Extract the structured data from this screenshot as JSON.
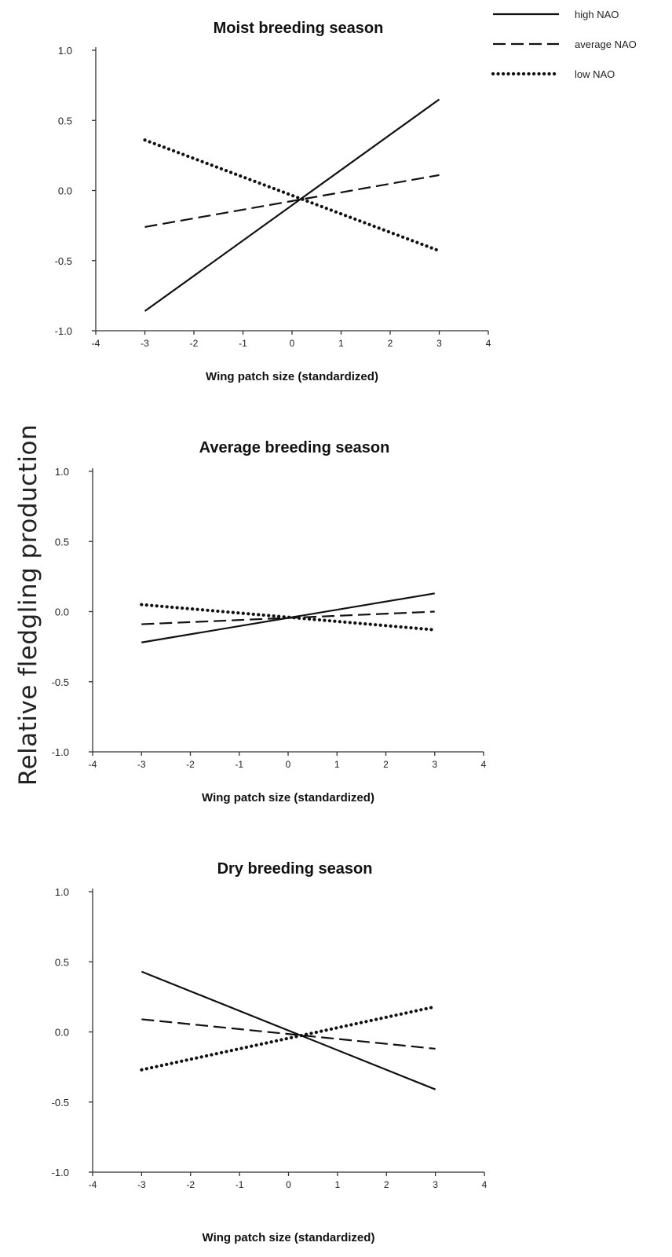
{
  "shared_ylabel": "Relative fledgling production",
  "legend": {
    "position": "top-right",
    "entries": [
      {
        "name": "high NAO",
        "style": "solid"
      },
      {
        "name": "average NAO",
        "style": "dashed"
      },
      {
        "name": "low NAO",
        "style": "dotted"
      }
    ]
  },
  "chart_data": [
    {
      "type": "line",
      "title": "Moist breeding season",
      "xlabel": "Wing patch size (standardized)",
      "ylabel": "",
      "xlim": [
        -4,
        4
      ],
      "ylim": [
        -1.0,
        1.0
      ],
      "xticks": [
        "-4",
        "-3",
        "-2",
        "-1",
        "0",
        "1",
        "2",
        "3",
        "4"
      ],
      "yticks": [
        "-1.0",
        "-0.5",
        "0.0",
        "0.5",
        "1.0"
      ],
      "grid": false,
      "x": [
        -3,
        3
      ],
      "series": [
        {
          "name": "high NAO",
          "values": [
            -0.86,
            0.65
          ]
        },
        {
          "name": "average NAO",
          "values": [
            -0.26,
            0.11
          ]
        },
        {
          "name": "low NAO",
          "values": [
            0.36,
            -0.43
          ]
        }
      ]
    },
    {
      "type": "line",
      "title": "Average breeding season",
      "xlabel": "Wing patch size (standardized)",
      "ylabel": "",
      "xlim": [
        -4,
        4
      ],
      "ylim": [
        -1.0,
        1.0
      ],
      "xticks": [
        "-4",
        "-3",
        "-2",
        "-1",
        "0",
        "1",
        "2",
        "3",
        "4"
      ],
      "yticks": [
        "-1.0",
        "-0.5",
        "0.0",
        "0.5",
        "1.0"
      ],
      "grid": false,
      "x": [
        -3,
        3
      ],
      "series": [
        {
          "name": "high NAO",
          "values": [
            -0.22,
            0.13
          ]
        },
        {
          "name": "average NAO",
          "values": [
            -0.09,
            0.0
          ]
        },
        {
          "name": "low NAO",
          "values": [
            0.05,
            -0.13
          ]
        }
      ]
    },
    {
      "type": "line",
      "title": "Dry breeding season",
      "xlabel": "Wing patch size (standardized)",
      "ylabel": "",
      "xlim": [
        -4,
        4
      ],
      "ylim": [
        -1.0,
        1.0
      ],
      "xticks": [
        "-4",
        "-3",
        "-2",
        "-1",
        "0",
        "1",
        "2",
        "3",
        "4"
      ],
      "yticks": [
        "-1.0",
        "-0.5",
        "0.0",
        "0.5",
        "1.0"
      ],
      "grid": false,
      "x": [
        -3,
        3
      ],
      "series": [
        {
          "name": "high NAO",
          "values": [
            0.43,
            -0.41
          ]
        },
        {
          "name": "average NAO",
          "values": [
            0.09,
            -0.12
          ]
        },
        {
          "name": "low NAO",
          "values": [
            -0.27,
            0.18
          ]
        }
      ]
    }
  ]
}
